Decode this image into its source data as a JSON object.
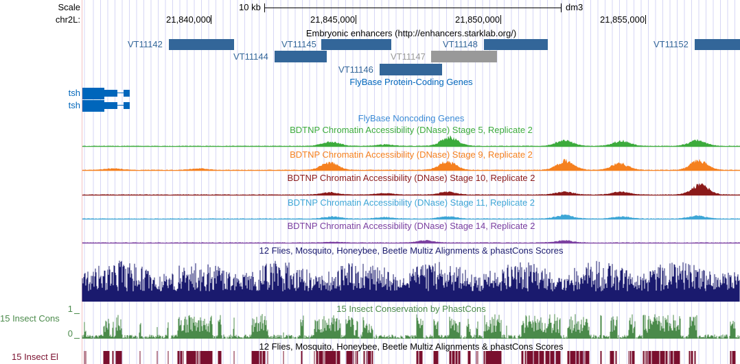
{
  "ruler": {
    "scale_label": "Scale",
    "scale_bar": "10 kb",
    "assembly": "dm3",
    "chrom_label": "chr2L:",
    "ticks": [
      "21,840,000",
      "21,845,000",
      "21,850,000",
      "21,855,000"
    ]
  },
  "enhancers": {
    "title": "Embryonic enhancers (http://enhancers.starklab.org/)",
    "color": "#336699",
    "gray_color": "#999999",
    "items": [
      {
        "name": "VT11142"
      },
      {
        "name": "VT11145"
      },
      {
        "name": "VT11148"
      },
      {
        "name": "VT11152"
      },
      {
        "name": "VT11144"
      },
      {
        "name": "VT11147",
        "gray": true
      },
      {
        "name": "VT11146"
      }
    ]
  },
  "genes": {
    "title": "FlyBase Protein-Coding Genes",
    "color": "#0066bb",
    "items": [
      "tsh",
      "tsh"
    ]
  },
  "noncoding": {
    "title": "FlyBase Noncoding Genes"
  },
  "dnase": [
    {
      "title": "BDTNP Chromatin Accessibility (DNase) Stage 5, Replicate 2",
      "color": "#3cab3c"
    },
    {
      "title": "BDTNP Chromatin Accessibility (DNase) Stage 9, Replicate 2",
      "color": "#f5801f"
    },
    {
      "title": "BDTNP Chromatin Accessibility (DNase) Stage 10, Replicate 2",
      "color": "#8b1a1a"
    },
    {
      "title": "BDTNP Chromatin Accessibility (DNase) Stage 11, Replicate 2",
      "color": "#3ea6d6"
    },
    {
      "title": "BDTNP Chromatin Accessibility (DNase) Stage 14, Replicate 2",
      "color": "#7b3fa0"
    }
  ],
  "multiz": {
    "title": "12 Flies, Mosquito, Honeybee, Beetle Multiz Alignments & phastCons Scores",
    "color": "#1a1a6e"
  },
  "phastcons": {
    "title": "15 Insect Conservation by PhastCons",
    "left_label": "15 Insect Cons",
    "ymax": "1",
    "ymin": "0",
    "color": "#4a8a4a"
  },
  "elements": {
    "title": "12 Flies, Mosquito, Honeybee, Beetle Multiz Alignments & phastCons Scores",
    "left_label": "15 Insect El",
    "color": "#7a0f2e"
  }
}
